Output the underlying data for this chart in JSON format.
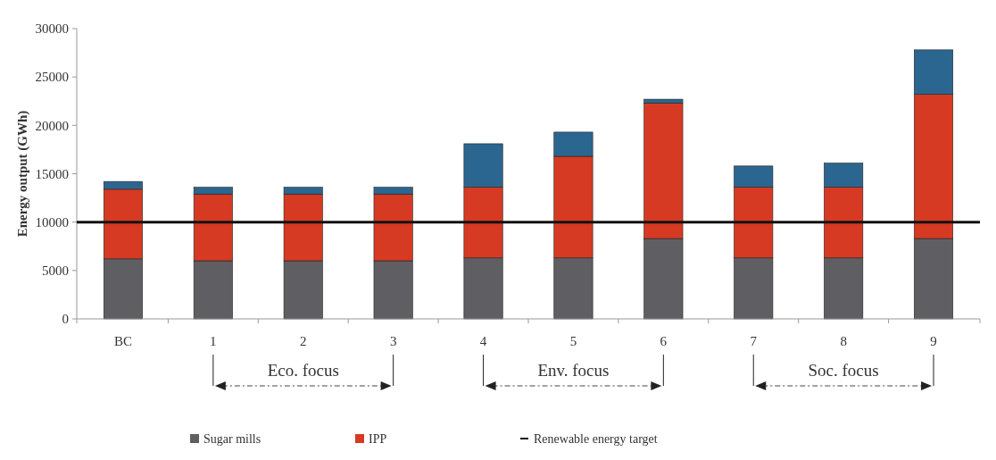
{
  "chart_data": {
    "type": "bar",
    "stacked": true,
    "ylabel": "Energy output (GWh)",
    "categories": [
      "BC",
      "1",
      "2",
      "3",
      "4",
      "5",
      "6",
      "7",
      "8",
      "9"
    ],
    "series": [
      {
        "name": "Sugar mills",
        "color": "#5f5f63",
        "values": [
          6200,
          6000,
          6000,
          6000,
          6300,
          6300,
          8300,
          6300,
          6300,
          8300
        ]
      },
      {
        "name": "IPP",
        "color": "#d63a22",
        "values": [
          7200,
          6900,
          6900,
          6900,
          7300,
          10500,
          14000,
          7300,
          7300,
          14900
        ]
      },
      {
        "color": "#2b6690",
        "values": [
          800,
          700,
          700,
          700,
          4500,
          2500,
          400,
          2200,
          2500,
          4600
        ]
      }
    ],
    "ylim": [
      0,
      30000
    ],
    "yticks": [
      0,
      5000,
      10000,
      15000,
      20000,
      25000,
      30000
    ],
    "ref_lines": [
      {
        "axis": "y",
        "value": 10000,
        "label": "Renewable energy target",
        "color": "#111111"
      }
    ],
    "annotations": [
      "Eco. focus",
      "Env. focus",
      "Soc. focus"
    ],
    "legend": "bottom"
  }
}
